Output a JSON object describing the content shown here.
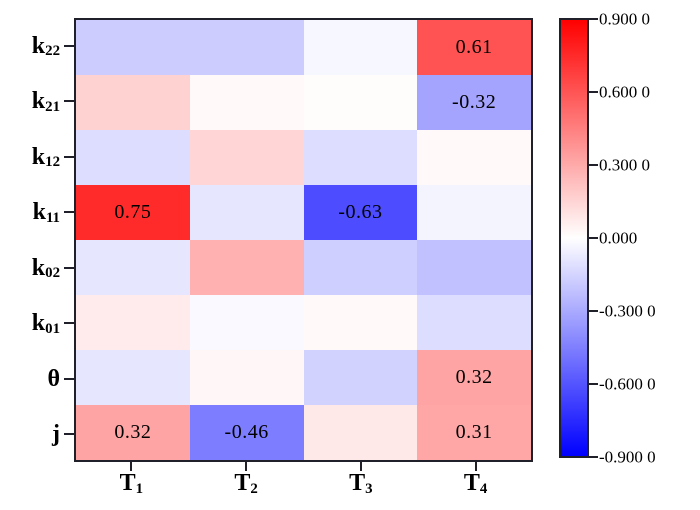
{
  "chart_data": {
    "type": "heatmap",
    "x_axis": {
      "labels": [
        {
          "base": "T",
          "sub": "1"
        },
        {
          "base": "T",
          "sub": "2"
        },
        {
          "base": "T",
          "sub": "3"
        },
        {
          "base": "T",
          "sub": "4"
        }
      ]
    },
    "y_axis": {
      "labels": [
        {
          "base": "k",
          "sub": "22"
        },
        {
          "base": "k",
          "sub": "21"
        },
        {
          "base": "k",
          "sub": "12"
        },
        {
          "base": "k",
          "sub": "11"
        },
        {
          "base": "k",
          "sub": "02"
        },
        {
          "base": "k",
          "sub": "01"
        },
        {
          "base": "θ",
          "sub": ""
        },
        {
          "base": "j",
          "sub": ""
        }
      ]
    },
    "values": [
      [
        -0.18,
        -0.18,
        -0.03,
        0.61
      ],
      [
        0.16,
        0.02,
        0.01,
        -0.32
      ],
      [
        -0.12,
        0.15,
        -0.12,
        0.02
      ],
      [
        0.75,
        -0.09,
        -0.63,
        -0.04
      ],
      [
        -0.09,
        0.28,
        -0.17,
        -0.22
      ],
      [
        0.07,
        -0.02,
        0.02,
        -0.12
      ],
      [
        -0.09,
        0.03,
        -0.16,
        0.32
      ],
      [
        0.32,
        -0.46,
        0.08,
        0.31
      ]
    ],
    "cell_labels": [
      [
        "",
        "",
        "",
        "0.61"
      ],
      [
        "",
        "",
        "",
        "-0.32"
      ],
      [
        "",
        "",
        "",
        ""
      ],
      [
        "0.75",
        "",
        "-0.63",
        ""
      ],
      [
        "",
        "",
        "",
        ""
      ],
      [
        "",
        "",
        "",
        ""
      ],
      [
        "",
        "",
        "",
        "0.32"
      ],
      [
        "0.32",
        "-0.46",
        "",
        "0.31"
      ]
    ],
    "vmin": -0.9,
    "vmax": 0.9,
    "colormap": {
      "name": "blue-white-red",
      "negative_max": "#0000ff",
      "zero": "#ffffff",
      "positive_max": "#ff0000"
    },
    "colorbar": {
      "tick_values": [
        0.9,
        0.6,
        0.3,
        0.0,
        -0.3,
        -0.6,
        -0.9
      ],
      "tick_labels": [
        "0.900 0",
        "0.600 0",
        "0.300 0",
        "0.000",
        "-0.300 0",
        "-0.600 0",
        "-0.900 0"
      ],
      "position": "right"
    },
    "grid": false,
    "legend": false
  }
}
